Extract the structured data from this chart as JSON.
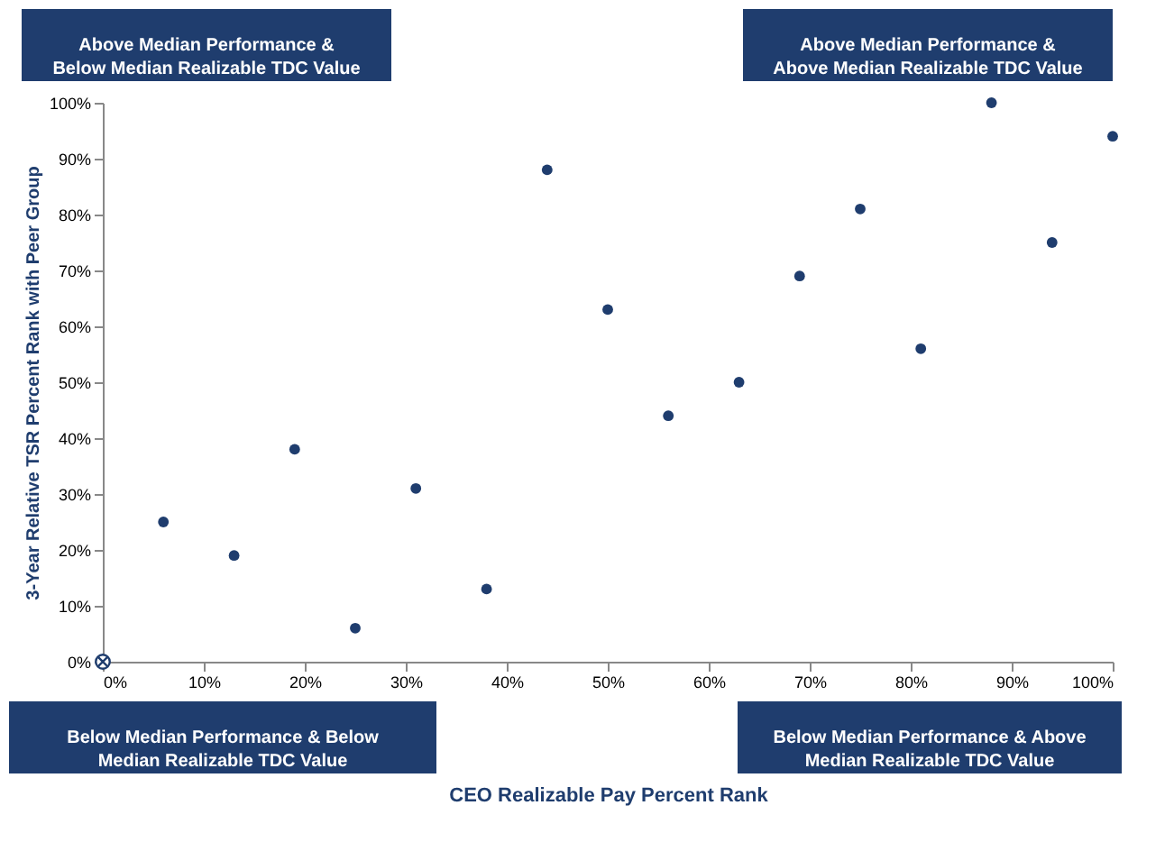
{
  "chart_data": {
    "type": "scatter",
    "xlabel": "CEO Realizable Pay Percent Rank",
    "ylabel": "3-Year Relative TSR Percent Rank with Peer Group",
    "series": [
      {
        "color": "#1f3d6e",
        "marker": "circle",
        "x": [
          6,
          13,
          19,
          25,
          31,
          38,
          44,
          50,
          56,
          63,
          69,
          75,
          81,
          88,
          94,
          100
        ],
        "values": [
          25,
          19,
          38,
          6,
          31,
          13,
          88,
          63,
          44,
          50,
          69,
          81,
          56,
          100,
          75,
          94
        ]
      },
      {
        "color": "#1f3d6e",
        "marker": "cross",
        "x": [
          0
        ],
        "values": [
          0
        ]
      }
    ],
    "xlim": [
      0,
      100
    ],
    "ylim": [
      0,
      100
    ],
    "xticks": [
      {
        "value": 0,
        "label": "0%"
      },
      {
        "value": 10,
        "label": "10%"
      },
      {
        "value": 20,
        "label": "20%"
      },
      {
        "value": 30,
        "label": "30%"
      },
      {
        "value": 40,
        "label": "40%"
      },
      {
        "value": 50,
        "label": "50%"
      },
      {
        "value": 60,
        "label": "60%"
      },
      {
        "value": 70,
        "label": "70%"
      },
      {
        "value": 80,
        "label": "80%"
      },
      {
        "value": 90,
        "label": "90%"
      },
      {
        "value": 100,
        "label": "100%"
      }
    ],
    "yticks": [
      {
        "value": 0,
        "label": "0%"
      },
      {
        "value": 10,
        "label": "10%"
      },
      {
        "value": 20,
        "label": "20%"
      },
      {
        "value": 30,
        "label": "30%"
      },
      {
        "value": 40,
        "label": "40%"
      },
      {
        "value": 50,
        "label": "50%"
      },
      {
        "value": 60,
        "label": "60%"
      },
      {
        "value": 70,
        "label": "70%"
      },
      {
        "value": 80,
        "label": "80%"
      },
      {
        "value": 90,
        "label": "90%"
      },
      {
        "value": 100,
        "label": "100%"
      }
    ],
    "grid": false,
    "annotations": [
      "Above Median Performance &\nBelow Median Realizable TDC Value",
      "Above Median Performance &\nAbove Median Realizable TDC Value",
      "Below Median Performance & Below\nMedian Realizable TDC Value",
      "Below Median Performance & Above\nMedian Realizable TDC Value"
    ]
  }
}
